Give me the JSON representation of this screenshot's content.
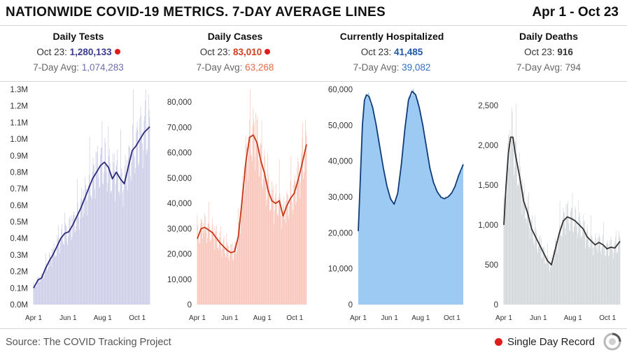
{
  "header": {
    "title": "NATIONWIDE COVID-19 METRICS. 7-DAY AVERAGE LINES",
    "date_range": "Apr 1 - Oct 23"
  },
  "metrics": [
    {
      "title": "Daily Tests",
      "date_label": "Oct 23:",
      "latest": "1,280,133",
      "avg_label": "7-Day Avg:",
      "avg": "1,074,283",
      "record": true,
      "value_color": "#3b3b8c",
      "avg_color": "#6e6eb0"
    },
    {
      "title": "Daily Cases",
      "date_label": "Oct 23:",
      "latest": "83,010",
      "avg_label": "7-Day Avg:",
      "avg": "63,268",
      "record": true,
      "value_color": "#d0401f",
      "avg_color": "#e66a4a"
    },
    {
      "title": "Currently Hospitalized",
      "date_label": "Oct 23:",
      "latest": "41,485",
      "avg_label": "7-Day Avg:",
      "avg": "39,082",
      "record": false,
      "value_color": "#1f57a8",
      "avg_color": "#2f70c4"
    },
    {
      "title": "Daily Deaths",
      "date_label": "Oct 23:",
      "latest": "916",
      "avg_label": "7-Day Avg:",
      "avg": "794",
      "record": false,
      "value_color": "#333333",
      "avg_color": "#666666"
    }
  ],
  "footer": {
    "source": "Source: The COVID Tracking Project",
    "legend_label": "Single Day Record"
  },
  "colors": {
    "record_dot": "#e31a1c"
  },
  "chart_data": [
    {
      "type": "bar",
      "title": "Daily Tests",
      "overlay": "line",
      "ylim": [
        0,
        1300000
      ],
      "ytick_values": [
        0,
        100000,
        200000,
        300000,
        400000,
        500000,
        600000,
        700000,
        800000,
        900000,
        1000000,
        1100000,
        1200000,
        1300000
      ],
      "ytick_labels": [
        "0.0M",
        "0.1M",
        "0.2M",
        "0.3M",
        "0.4M",
        "0.5M",
        "0.6M",
        "0.7M",
        "0.8M",
        "0.9M",
        "1.0M",
        "1.1M",
        "1.2M",
        "1.3M"
      ],
      "xtick_labels": [
        "Apr 1",
        "Jun 1",
        "Aug 1",
        "Oct 1"
      ],
      "xtick_days": [
        0,
        61,
        122,
        183
      ],
      "line_days": [
        0,
        8,
        14,
        20,
        27,
        34,
        41,
        48,
        55,
        62,
        69,
        76,
        83,
        90,
        97,
        104,
        111,
        118,
        125,
        132,
        139,
        146,
        153,
        160,
        167,
        174,
        181,
        188,
        195,
        205
      ],
      "line_values": [
        100000,
        150000,
        160000,
        210000,
        260000,
        300000,
        350000,
        400000,
        430000,
        440000,
        480000,
        530000,
        580000,
        640000,
        700000,
        760000,
        800000,
        840000,
        860000,
        830000,
        760000,
        800000,
        760000,
        730000,
        830000,
        930000,
        960000,
        1000000,
        1040000,
        1074283
      ],
      "bar_color": "#c8c8e6",
      "line_color": "#2a2a7a"
    },
    {
      "type": "bar",
      "title": "Daily Cases",
      "overlay": "line",
      "ylim": [
        0,
        85000
      ],
      "ytick_values": [
        0,
        10000,
        20000,
        30000,
        40000,
        50000,
        60000,
        70000,
        80000
      ],
      "ytick_labels": [
        "0",
        "10,000",
        "20,000",
        "30,000",
        "40,000",
        "50,000",
        "60,000",
        "70,000",
        "80,000"
      ],
      "xtick_labels": [
        "Apr 1",
        "Jun 1",
        "Aug 1",
        "Oct 1"
      ],
      "xtick_days": [
        0,
        61,
        122,
        183
      ],
      "line_days": [
        0,
        7,
        14,
        21,
        28,
        35,
        42,
        49,
        56,
        63,
        70,
        77,
        84,
        91,
        98,
        105,
        112,
        119,
        126,
        133,
        140,
        147,
        154,
        161,
        168,
        175,
        182,
        189,
        196,
        205
      ],
      "line_values": [
        26000,
        30000,
        30500,
        29500,
        28500,
        26500,
        24500,
        23000,
        21500,
        20500,
        21000,
        27000,
        41000,
        56000,
        66000,
        67000,
        64000,
        57000,
        52000,
        45000,
        41000,
        40000,
        41000,
        35000,
        39000,
        42000,
        44000,
        49000,
        55000,
        63268
      ],
      "bar_color": "#f8beb1",
      "line_color": "#c8371a"
    },
    {
      "type": "area",
      "title": "Currently Hospitalized",
      "overlay": "line",
      "ylim": [
        0,
        60000
      ],
      "ytick_values": [
        0,
        10000,
        20000,
        30000,
        40000,
        50000,
        60000
      ],
      "ytick_labels": [
        "0",
        "10,000",
        "20,000",
        "30,000",
        "40,000",
        "50,000",
        "60,000"
      ],
      "xtick_labels": [
        "Apr 1",
        "Jun 1",
        "Aug 1",
        "Oct 1"
      ],
      "xtick_days": [
        0,
        61,
        122,
        183
      ],
      "line_days": [
        0,
        4,
        8,
        12,
        16,
        21,
        28,
        35,
        42,
        49,
        56,
        63,
        70,
        77,
        84,
        91,
        98,
        105,
        112,
        119,
        126,
        133,
        140,
        147,
        154,
        161,
        168,
        175,
        182,
        189,
        196,
        205
      ],
      "line_values": [
        20500,
        35000,
        50000,
        57000,
        58500,
        58000,
        55000,
        50000,
        44000,
        38000,
        33000,
        29500,
        28000,
        31000,
        39000,
        49000,
        57000,
        59500,
        58500,
        55000,
        50000,
        44000,
        38000,
        34000,
        31500,
        30000,
        29500,
        30000,
        31000,
        33000,
        36000,
        39082
      ],
      "bar_color": "#9ccaf2",
      "line_color": "#0e3c78"
    },
    {
      "type": "bar",
      "title": "Daily Deaths",
      "overlay": "line",
      "ylim": [
        0,
        2700
      ],
      "ytick_values": [
        0,
        500,
        1000,
        1500,
        2000,
        2500
      ],
      "ytick_labels": [
        "0",
        "500",
        "1,000",
        "1,500",
        "2,000",
        "2,500"
      ],
      "xtick_labels": [
        "Apr 1",
        "Jun 1",
        "Aug 1",
        "Oct 1"
      ],
      "xtick_days": [
        0,
        61,
        122,
        183
      ],
      "line_days": [
        0,
        4,
        8,
        12,
        16,
        20,
        24,
        28,
        35,
        42,
        49,
        56,
        63,
        70,
        77,
        84,
        91,
        98,
        105,
        112,
        119,
        126,
        133,
        140,
        147,
        154,
        161,
        168,
        175,
        182,
        189,
        196,
        205
      ],
      "line_values": [
        1000,
        1500,
        1900,
        2100,
        2100,
        1900,
        1750,
        1600,
        1300,
        1150,
        950,
        850,
        750,
        650,
        550,
        500,
        700,
        900,
        1050,
        1100,
        1080,
        1050,
        1000,
        950,
        850,
        800,
        750,
        780,
        750,
        700,
        720,
        710,
        794
      ],
      "bar_color": "#cfd3d6",
      "line_color": "#333333"
    }
  ]
}
